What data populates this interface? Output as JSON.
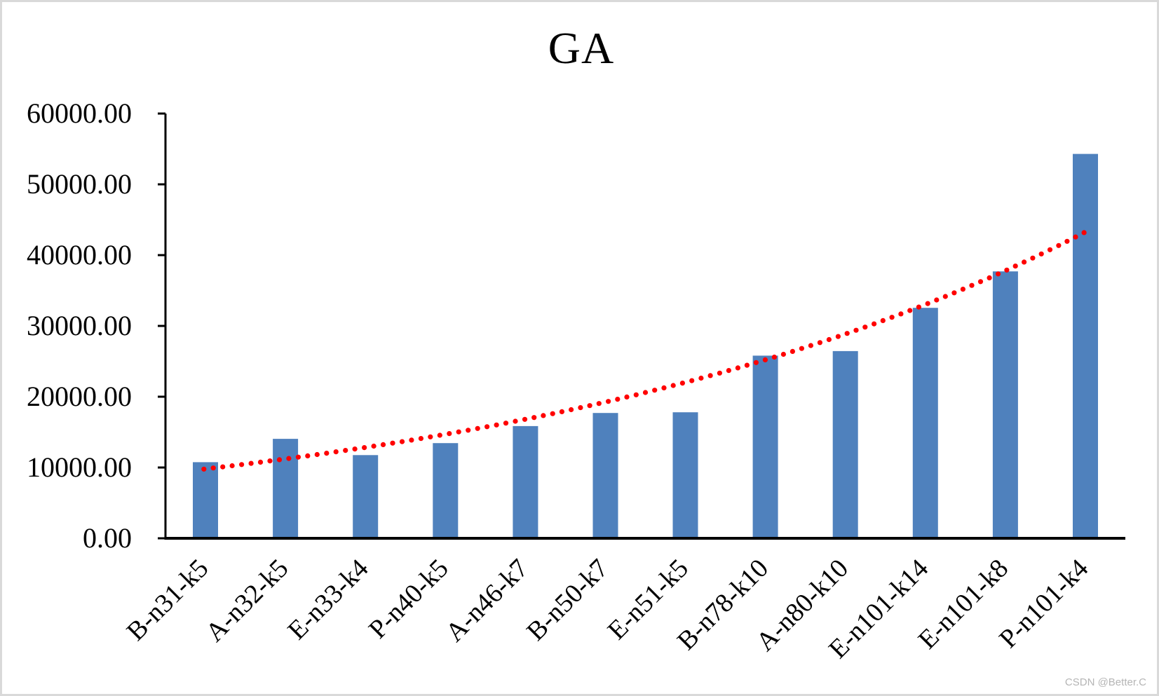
{
  "chart_data": {
    "type": "bar",
    "title": "GA",
    "xlabel": "",
    "ylabel": "",
    "categories": [
      "B-n31-k5",
      "A-n32-k5",
      "E-n33-k4",
      "P-n40-k5",
      "A-n46-k7",
      "B-n50-k7",
      "E-n51-k5",
      "B-n78-k10",
      "A-n80-k10",
      "E-n101-k14",
      "E-n101-k8",
      "P-n101-k4"
    ],
    "values": [
      10750,
      14050,
      11750,
      13450,
      15850,
      17700,
      17800,
      25800,
      26450,
      32550,
      37700,
      54300
    ],
    "ylim": [
      0,
      60000
    ],
    "y_ticks": [
      {
        "value": 0,
        "label": "0.00"
      },
      {
        "value": 10000,
        "label": "10000.00"
      },
      {
        "value": 20000,
        "label": "20000.00"
      },
      {
        "value": 30000,
        "label": "30000.00"
      },
      {
        "value": 40000,
        "label": "40000.00"
      },
      {
        "value": 50000,
        "label": "50000.00"
      },
      {
        "value": 60000,
        "label": "60000.00"
      }
    ],
    "grid": "off",
    "legend": "none",
    "bar_color": "#4f81bd",
    "axis_color": "#000000",
    "trendline": {
      "fit": "exponential",
      "style": "dotted",
      "color": "#ff0000",
      "value_at_first_category": 9800,
      "growth_rate_per_category": 0.135
    }
  },
  "watermark": {
    "text": "CSDN @Better.C",
    "color": "#b5b5b5"
  }
}
